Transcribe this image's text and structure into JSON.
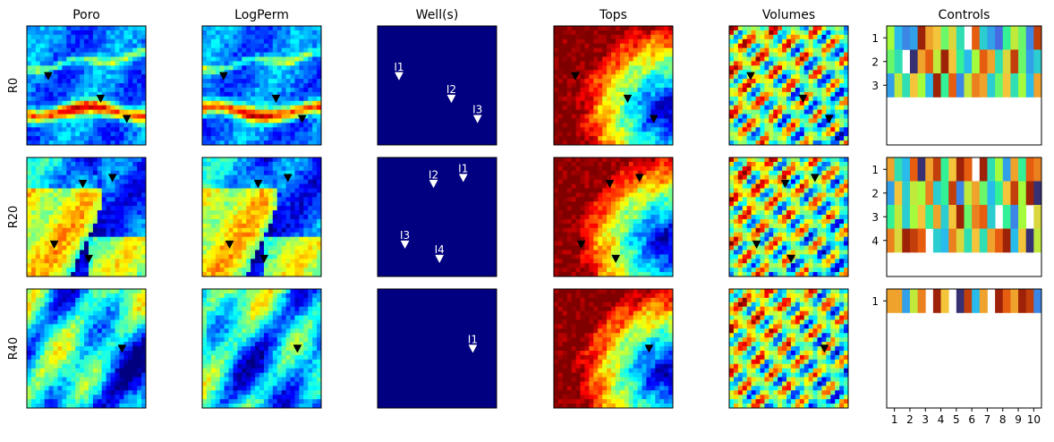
{
  "columns": [
    "Poro",
    "LogPerm",
    "Well(s)",
    "Tops",
    "Volumes",
    "Controls"
  ],
  "rows": [
    "R0",
    "R20",
    "R40"
  ],
  "chart_data": {
    "type": "heatmap",
    "colormap": "jet",
    "control_colormap": "turbo",
    "field_patterns": {
      "Poro": [
        "channels",
        "meander",
        "patchy"
      ],
      "LogPerm": [
        "channels",
        "meander",
        "patchy"
      ],
      "Tops": [
        "dome",
        "dome",
        "dome"
      ],
      "Volumes": [
        "ripples",
        "ripples",
        "ripples"
      ]
    },
    "wells": [
      [
        {
          "label": "I1",
          "x": 0.18,
          "y": 0.42
        },
        {
          "label": "I2",
          "x": 0.62,
          "y": 0.61
        },
        {
          "label": "I3",
          "x": 0.84,
          "y": 0.78
        }
      ],
      [
        {
          "label": "I1",
          "x": 0.72,
          "y": 0.17
        },
        {
          "label": "I2",
          "x": 0.47,
          "y": 0.22
        },
        {
          "label": "I3",
          "x": 0.23,
          "y": 0.73
        },
        {
          "label": "I4",
          "x": 0.52,
          "y": 0.85
        }
      ],
      [
        {
          "label": "I1",
          "x": 0.8,
          "y": 0.5
        }
      ]
    ],
    "controls": [
      {
        "wells": [
          1,
          2,
          3
        ],
        "values": [
          [
            0.55,
            0.3,
            0.2,
            0.25,
            0.95,
            0.75,
            0.7,
            0.5,
            0.65,
            0.4,
            null,
            0.85,
            0.35,
            0.25,
            0.15,
            0.45,
            0.6,
            0.5,
            0.2,
            0.9
          ],
          [
            0.5,
            0.4,
            null,
            0.05,
            0.75,
            0.85,
            0.6,
            0.95,
            0.7,
            0.45,
            0.3,
            0.55,
            0.85,
            0.75,
            0.4,
            0.65,
            0.9,
            0.5,
            0.25,
            0.35
          ],
          [
            0.25,
            0.6,
            0.4,
            0.7,
            0.55,
            0.3,
            0.95,
            0.45,
            0.85,
            0.2,
            0.6,
            0.8,
            0.75,
            0.35,
            0.5,
            0.7,
            0.4,
            0.55,
            0.3,
            0.75
          ]
        ]
      },
      {
        "wells": [
          1,
          2,
          3,
          4
        ],
        "values": [
          [
            0.75,
            0.4,
            0.3,
            0.85,
            0.05,
            0.75,
            0.9,
            0.45,
            0.7,
            0.95,
            0.85,
            null,
            0.95,
            0.4,
            0.55,
            0.25,
            0.75,
            0.45,
            0.85,
            0.8
          ],
          [
            0.25,
            0.7,
            0.35,
            0.6,
            0.55,
            0.8,
            0.35,
            0.45,
            0.9,
            0.2,
            0.6,
            0.75,
            0.5,
            0.3,
            0.45,
            0.7,
            0.9,
            0.55,
            0.95,
            0.05
          ],
          [
            0.45,
            0.6,
            0.35,
            0.55,
            0.7,
            0.45,
            0.75,
            0.35,
            0.7,
            0.95,
            0.5,
            0.8,
            0.85,
            0.35,
            null,
            0.45,
            0.2,
            0.55,
            null,
            0.65
          ],
          [
            0.8,
            0.65,
            0.95,
            0.9,
            0.85,
            null,
            0.35,
            0.3,
            0.8,
            0.65,
            0.4,
            0.7,
            0.4,
            0.75,
            0.85,
            0.95,
            0.3,
            0.7,
            0.05,
            0.6
          ]
        ]
      },
      {
        "wells": [
          1
        ],
        "values": [
          [
            0.75,
            0.75,
            0.25,
            0.6,
            0.8,
            null,
            0.95,
            0.7,
            null,
            0.05,
            0.9,
            0.3,
            0.75,
            null,
            0.95,
            0.85,
            0.75,
            0.95,
            0.9,
            0.2
          ]
        ]
      }
    ],
    "control_xticks": [
      "1",
      "2",
      "3",
      "4",
      "5",
      "6",
      "7",
      "8",
      "9",
      "10"
    ]
  }
}
